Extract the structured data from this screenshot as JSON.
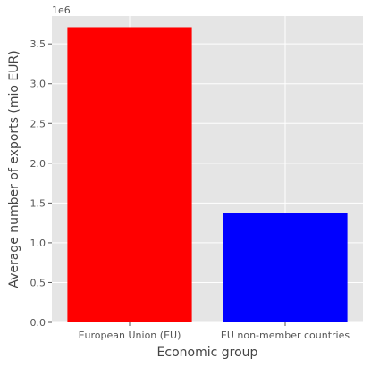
{
  "chart_data": {
    "type": "bar",
    "categories": [
      "European Union (EU)",
      "EU non-member countries"
    ],
    "values": [
      3710000,
      1370000
    ],
    "colors": [
      "#ff0000",
      "#0000ff"
    ],
    "title": "",
    "xlabel": "Economic group",
    "ylabel": "Average number of exports (mio EUR)",
    "scale_multiplier_label": "1e6",
    "ylim": [
      0,
      3850000
    ],
    "yticks": [
      0,
      500000,
      1000000,
      1500000,
      2000000,
      2500000,
      3000000,
      3500000
    ],
    "ytick_labels": [
      "0.0",
      "0.5",
      "1.0",
      "1.5",
      "2.0",
      "2.5",
      "3.0",
      "3.5"
    ],
    "grid": true,
    "style": "ggplot",
    "background_color": "#e5e5e5"
  }
}
